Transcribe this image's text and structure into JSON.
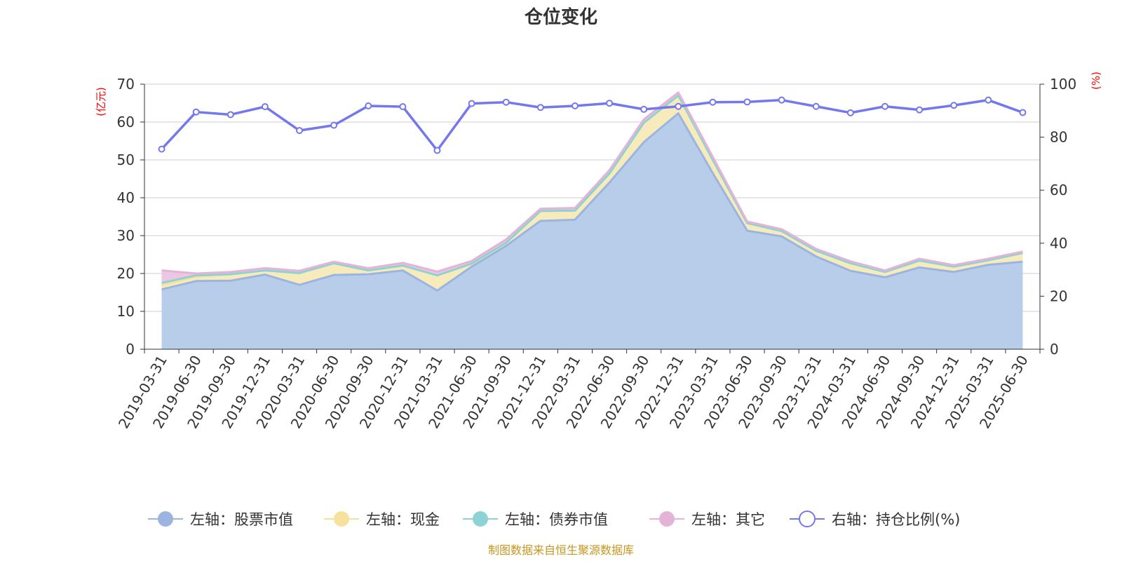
{
  "chart_data": {
    "type": "area",
    "title": "仓位变化",
    "left_axis_unit": "(亿元)",
    "right_axis_unit": "(%)",
    "left_ylim": [
      0,
      70
    ],
    "left_ticks": [
      0,
      10,
      20,
      30,
      40,
      50,
      60,
      70
    ],
    "right_ylim": [
      0,
      100
    ],
    "right_ticks": [
      0,
      20,
      40,
      60,
      80,
      100
    ],
    "grid": true,
    "legend_position": "bottom",
    "categories": [
      "2019-03-31",
      "2019-06-30",
      "2019-09-30",
      "2019-12-31",
      "2020-03-31",
      "2020-06-30",
      "2020-09-30",
      "2020-12-31",
      "2021-03-31",
      "2021-06-30",
      "2021-09-30",
      "2021-12-31",
      "2022-03-31",
      "2022-06-30",
      "2022-09-30",
      "2022-12-31",
      "2023-03-31",
      "2023-06-30",
      "2023-09-30",
      "2023-12-31",
      "2024-03-31",
      "2024-06-30",
      "2024-09-30",
      "2024-12-31",
      "2025-03-31",
      "2025-06-30"
    ],
    "series": [
      {
        "name": "左轴：股票市值",
        "axis": "left",
        "stack": true,
        "color": "#9bb5e0",
        "fill": "#b8cdea",
        "values": [
          15.8,
          18.0,
          18.1,
          19.7,
          17.0,
          19.6,
          19.8,
          20.8,
          15.5,
          21.8,
          27.3,
          33.9,
          34.2,
          44.0,
          54.7,
          62.3,
          46.5,
          31.3,
          29.8,
          24.5,
          20.7,
          19.0,
          21.6,
          20.4,
          22.3,
          23.1
        ]
      },
      {
        "name": "左轴：现金",
        "axis": "left",
        "stack": true,
        "color": "#f6e29d",
        "fill": "#f8ebbb",
        "values": [
          1.1,
          1.1,
          1.7,
          1.1,
          3.1,
          3.1,
          1.0,
          1.3,
          4.0,
          0.8,
          0.8,
          2.6,
          2.4,
          2.4,
          5.1,
          4.7,
          3.5,
          2.0,
          1.4,
          1.5,
          2.0,
          1.4,
          1.8,
          1.4,
          1.2,
          2.3
        ]
      },
      {
        "name": "左轴：债券市值",
        "axis": "left",
        "stack": true,
        "color": "#8ed3d3",
        "fill": "#a8ddd9",
        "values": [
          0.6,
          0.4,
          0,
          0,
          0,
          0,
          0,
          0,
          0,
          0,
          0,
          0,
          0,
          0,
          0,
          0,
          0,
          0,
          0,
          0,
          0,
          0,
          0,
          0,
          0,
          0
        ]
      },
      {
        "name": "左轴：其它",
        "axis": "left",
        "stack": true,
        "color": "#e4b4d8",
        "fill": "#ecc6e2",
        "values": [
          3.3,
          0.5,
          0.6,
          0.6,
          0.6,
          0.4,
          0.6,
          0.7,
          1.0,
          0.7,
          0.9,
          0.6,
          0.7,
          0.9,
          0.9,
          0.8,
          0.8,
          0.4,
          0.5,
          0.5,
          0.5,
          0.4,
          0.5,
          0.4,
          0.4,
          0.4
        ]
      },
      {
        "name": "右轴：持仓比例(%)",
        "axis": "right",
        "stack": false,
        "color": "#7478ec",
        "values": [
          75.5,
          89.5,
          88.5,
          91.5,
          82.5,
          84.5,
          91.8,
          91.5,
          75.0,
          92.7,
          93.2,
          91.2,
          91.8,
          92.8,
          90.5,
          91.6,
          93.2,
          93.3,
          94.0,
          91.6,
          89.2,
          91.6,
          90.3,
          92.0,
          94.0,
          89.3
        ]
      }
    ]
  },
  "footer": {
    "source": "制图数据来自恒生聚源数据库"
  }
}
